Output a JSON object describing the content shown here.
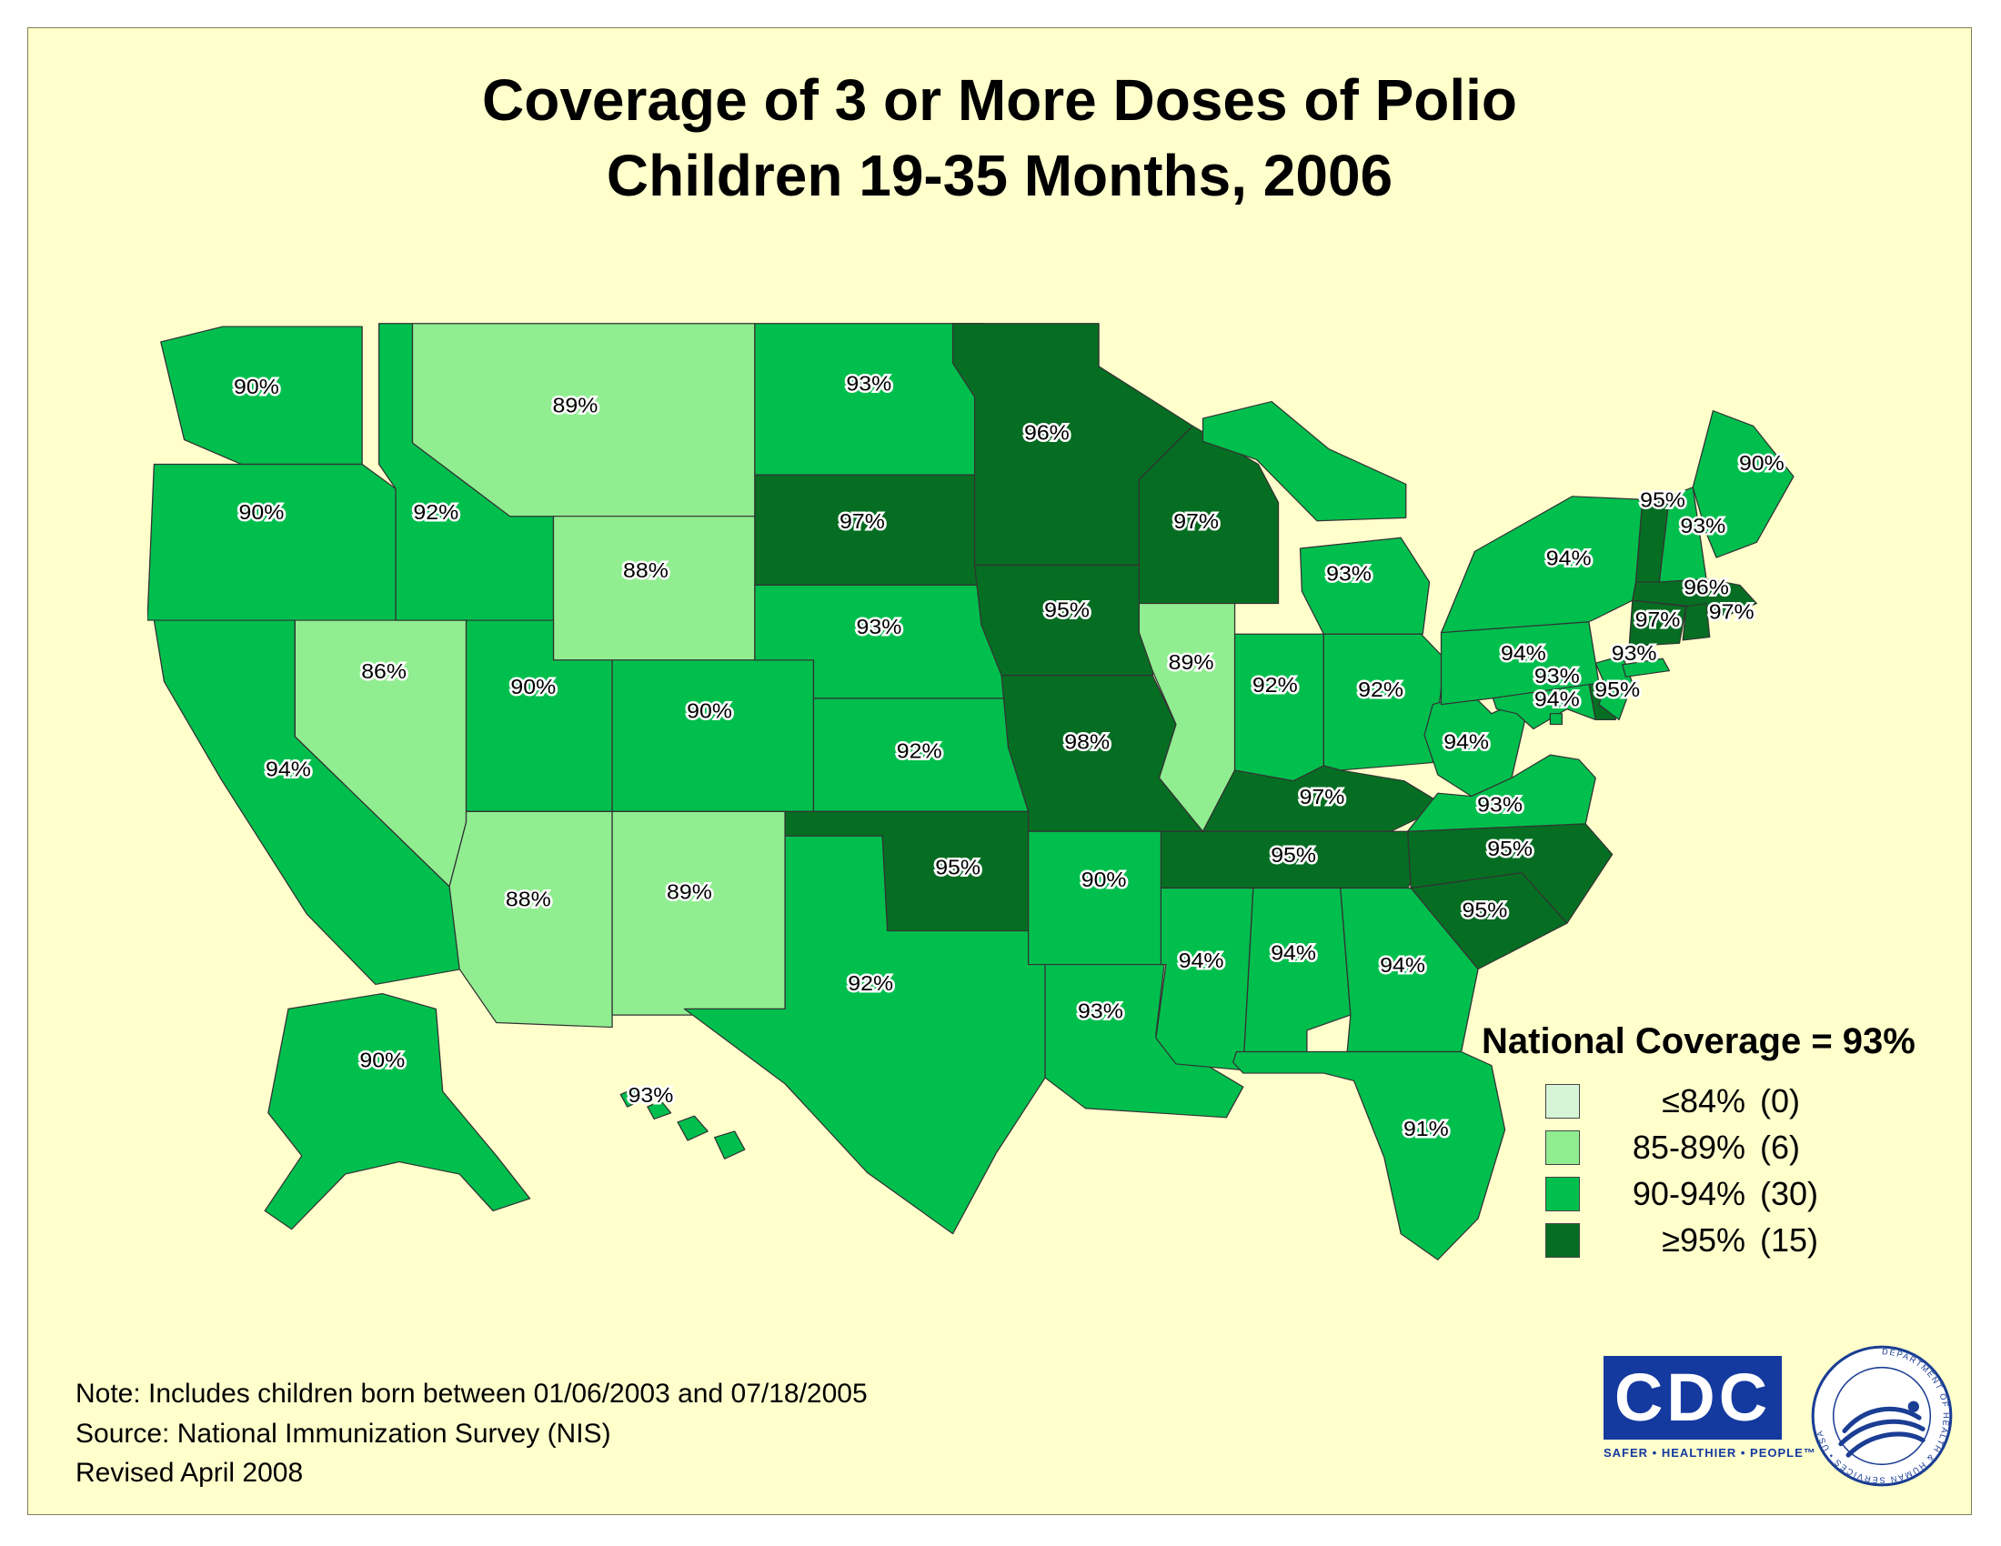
{
  "panel_background": "#ffffcc",
  "title": {
    "line1": "Coverage of 3 or More Doses of Polio",
    "line2": "Children 19-35 Months, 2006"
  },
  "legend": {
    "title": "National Coverage = 93%",
    "items": [
      {
        "range": "≤84%",
        "count": "(0)",
        "color": "#d6f5d6"
      },
      {
        "range": "85-89%",
        "count": "(6)",
        "color": "#90ee90"
      },
      {
        "range": "90-94%",
        "count": "(30)",
        "color": "#00bf4d"
      },
      {
        "range": "≥95%",
        "count": "(15)",
        "color": "#056e22"
      }
    ]
  },
  "map": {
    "stroke": "#333333",
    "label_color": "#000000",
    "label_halo": "#ffffff",
    "states": [
      {
        "id": "WA",
        "name": "Washington",
        "value": "90%",
        "bucket": 2
      },
      {
        "id": "OR",
        "name": "Oregon",
        "value": "90%",
        "bucket": 2
      },
      {
        "id": "CA",
        "name": "California",
        "value": "94%",
        "bucket": 2
      },
      {
        "id": "NV",
        "name": "Nevada",
        "value": "86%",
        "bucket": 1
      },
      {
        "id": "ID",
        "name": "Idaho",
        "value": "92%",
        "bucket": 2
      },
      {
        "id": "MT",
        "name": "Montana",
        "value": "89%",
        "bucket": 1
      },
      {
        "id": "WY",
        "name": "Wyoming",
        "value": "88%",
        "bucket": 1
      },
      {
        "id": "UT",
        "name": "Utah",
        "value": "90%",
        "bucket": 2
      },
      {
        "id": "CO",
        "name": "Colorado",
        "value": "90%",
        "bucket": 2
      },
      {
        "id": "AZ",
        "name": "Arizona",
        "value": "88%",
        "bucket": 1
      },
      {
        "id": "NM",
        "name": "New Mexico",
        "value": "89%",
        "bucket": 1
      },
      {
        "id": "ND",
        "name": "North Dakota",
        "value": "93%",
        "bucket": 2
      },
      {
        "id": "SD",
        "name": "South Dakota",
        "value": "97%",
        "bucket": 3
      },
      {
        "id": "NE",
        "name": "Nebraska",
        "value": "93%",
        "bucket": 2
      },
      {
        "id": "KS",
        "name": "Kansas",
        "value": "92%",
        "bucket": 2
      },
      {
        "id": "OK",
        "name": "Oklahoma",
        "value": "95%",
        "bucket": 3
      },
      {
        "id": "TX",
        "name": "Texas",
        "value": "92%",
        "bucket": 2
      },
      {
        "id": "MN",
        "name": "Minnesota",
        "value": "96%",
        "bucket": 3
      },
      {
        "id": "IA",
        "name": "Iowa",
        "value": "95%",
        "bucket": 3
      },
      {
        "id": "MO",
        "name": "Missouri",
        "value": "98%",
        "bucket": 3
      },
      {
        "id": "AR",
        "name": "Arkansas",
        "value": "90%",
        "bucket": 2
      },
      {
        "id": "LA",
        "name": "Louisiana",
        "value": "93%",
        "bucket": 2
      },
      {
        "id": "WI",
        "name": "Wisconsin",
        "value": "97%",
        "bucket": 3
      },
      {
        "id": "IL",
        "name": "Illinois",
        "value": "89%",
        "bucket": 1
      },
      {
        "id": "MI",
        "name": "Michigan",
        "value": "93%",
        "bucket": 2
      },
      {
        "id": "IN",
        "name": "Indiana",
        "value": "92%",
        "bucket": 2
      },
      {
        "id": "OH",
        "name": "Ohio",
        "value": "92%",
        "bucket": 2
      },
      {
        "id": "KY",
        "name": "Kentucky",
        "value": "97%",
        "bucket": 3
      },
      {
        "id": "TN",
        "name": "Tennessee",
        "value": "95%",
        "bucket": 3
      },
      {
        "id": "MS",
        "name": "Mississippi",
        "value": "94%",
        "bucket": 2
      },
      {
        "id": "AL",
        "name": "Alabama",
        "value": "94%",
        "bucket": 2
      },
      {
        "id": "GA",
        "name": "Georgia",
        "value": "94%",
        "bucket": 2
      },
      {
        "id": "FL",
        "name": "Florida",
        "value": "91%",
        "bucket": 2
      },
      {
        "id": "SC",
        "name": "South Carolina",
        "value": "95%",
        "bucket": 3
      },
      {
        "id": "NC",
        "name": "North Carolina",
        "value": "95%",
        "bucket": 3
      },
      {
        "id": "VA",
        "name": "Virginia",
        "value": "93%",
        "bucket": 2
      },
      {
        "id": "WV",
        "name": "West Virginia",
        "value": "94%",
        "bucket": 2
      },
      {
        "id": "MD",
        "name": "Maryland",
        "value": "93%",
        "bucket": 2
      },
      {
        "id": "DC",
        "name": "District of Columbia",
        "value": "94%",
        "bucket": 2
      },
      {
        "id": "DE",
        "name": "Delaware",
        "value": "95%",
        "bucket": 3
      },
      {
        "id": "NJ",
        "name": "New Jersey",
        "value": "93%",
        "bucket": 2
      },
      {
        "id": "PA",
        "name": "Pennsylvania",
        "value": "94%",
        "bucket": 2
      },
      {
        "id": "NY",
        "name": "New York",
        "value": "94%",
        "bucket": 2
      },
      {
        "id": "VT",
        "name": "Vermont",
        "value": "95%",
        "bucket": 3
      },
      {
        "id": "NH",
        "name": "New Hampshire",
        "value": "93%",
        "bucket": 2
      },
      {
        "id": "ME",
        "name": "Maine",
        "value": "90%",
        "bucket": 2
      },
      {
        "id": "MA",
        "name": "Massachusetts",
        "value": "96%",
        "bucket": 3
      },
      {
        "id": "CT",
        "name": "Connecticut",
        "value": "97%",
        "bucket": 3
      },
      {
        "id": "RI",
        "name": "Rhode Island",
        "value": "97%",
        "bucket": 3
      },
      {
        "id": "AK",
        "name": "Alaska",
        "value": "90%",
        "bucket": 2
      },
      {
        "id": "HI",
        "name": "Hawaii",
        "value": "93%",
        "bucket": 2
      }
    ]
  },
  "notes": {
    "line1": "Note: Includes children born between 01/06/2003 and 07/18/2005",
    "line2": "Source: National Immunization Survey (NIS)",
    "line3": "Revised April 2008"
  },
  "footer": {
    "cdc_text": "CDC",
    "cdc_tagline": "SAFER • HEALTHIER • PEOPLE™",
    "hhs_title": "DEPARTMENT OF HEALTH & HUMAN SERVICES • USA"
  }
}
